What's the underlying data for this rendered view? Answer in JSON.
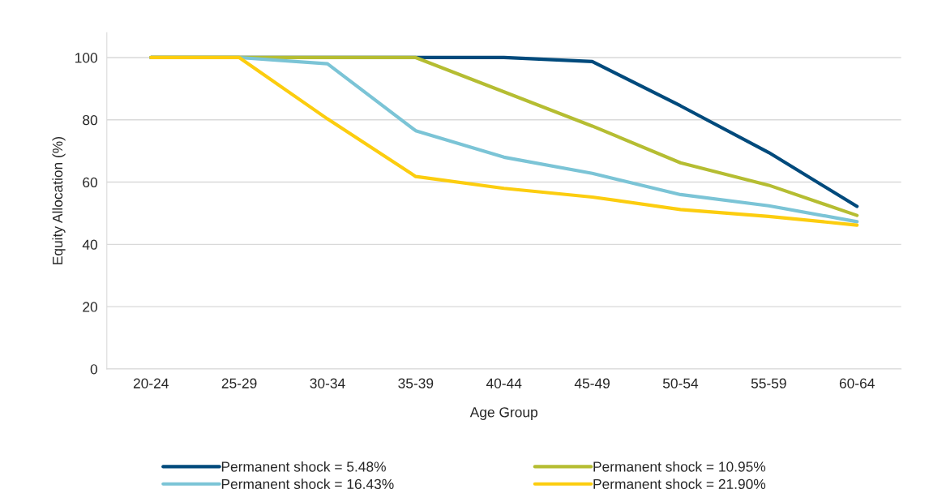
{
  "chart_data": {
    "type": "line",
    "xlabel": "Age Group",
    "ylabel": "Equity Allocation (%)",
    "categories": [
      "20-24",
      "25-29",
      "30-34",
      "35-39",
      "40-44",
      "45-49",
      "50-54",
      "55-59",
      "60-64"
    ],
    "series": [
      {
        "name": "Permanent shock = 5.48%",
        "color": "#004a7c",
        "values": [
          100,
          100,
          100,
          100,
          100,
          98.7,
          84.5,
          69.5,
          52.2
        ]
      },
      {
        "name": "Permanent shock = 10.95%",
        "color": "#b5bd32",
        "values": [
          100,
          100,
          100,
          100,
          89,
          78,
          66.2,
          59,
          49.3
        ]
      },
      {
        "name": "Permanent shock = 16.43%",
        "color": "#7bc4d6",
        "values": [
          100,
          100,
          98,
          76.5,
          68,
          62.8,
          56,
          52.4,
          47.3
        ]
      },
      {
        "name": "Permanent shock = 21.90%",
        "color": "#fccd0f",
        "values": [
          100,
          100,
          80.3,
          61.8,
          58,
          55.2,
          51.2,
          49,
          46.2
        ]
      }
    ],
    "ylim": [
      0,
      108
    ],
    "yticks": [
      0,
      20,
      40,
      60,
      80,
      100
    ],
    "grid": "y",
    "legend": "bottom",
    "marker": "none",
    "line_style": "solid"
  }
}
